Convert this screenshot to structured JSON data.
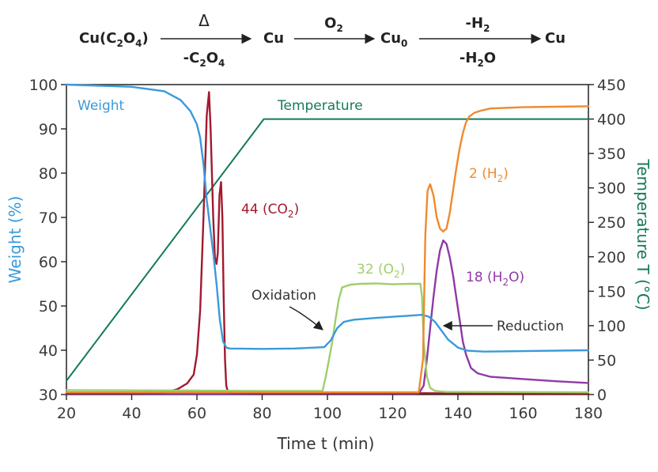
{
  "reaction_scheme": {
    "species": [
      "Cu(C2O4)",
      "Cu",
      "Cu0",
      "Cu"
    ],
    "step1_above": "Δ",
    "step1_below": "-C2O4",
    "step2_above": "O2",
    "step3_above": "-H2",
    "step3_below": "-H2O"
  },
  "chart_data": {
    "type": "line",
    "xlabel": "Time t (min)",
    "ylabel_left": "Weight (%)",
    "ylabel_right": "Temperature T (°C)",
    "xlim": [
      20,
      180
    ],
    "ylim_left": [
      30,
      100
    ],
    "ylim_right": [
      0,
      450
    ],
    "x_ticks": [
      20,
      40,
      60,
      80,
      100,
      120,
      140,
      160,
      180
    ],
    "y_left_ticks": [
      30,
      40,
      50,
      60,
      70,
      80,
      90,
      100
    ],
    "y_right_ticks": [
      0,
      50,
      100,
      150,
      200,
      250,
      300,
      350,
      400,
      450
    ],
    "grid": false,
    "series": [
      {
        "name": "Weight",
        "axis": "left",
        "color": "#3a9ad9",
        "x": [
          20,
          40,
          50,
          55,
          58,
          60,
          61,
          62,
          63,
          64,
          65,
          66,
          67,
          68,
          69,
          70,
          80,
          90,
          99,
          101,
          103,
          105,
          108,
          115,
          125,
          129,
          131,
          133,
          135,
          137,
          140,
          143,
          148,
          160,
          180
        ],
        "y": [
          100,
          99.5,
          98.5,
          96.5,
          94,
          91,
          88,
          82,
          74,
          68,
          62,
          55,
          47,
          42,
          40.6,
          40.4,
          40.3,
          40.4,
          40.7,
          42.2,
          45,
          46.4,
          46.9,
          47.3,
          47.8,
          48,
          47.6,
          46.4,
          44.4,
          42.4,
          40.6,
          39.9,
          39.7,
          39.8,
          40
        ]
      },
      {
        "name": "Temperature",
        "axis": "right",
        "color": "#147a5a",
        "x": [
          20,
          80.5,
          180
        ],
        "y": [
          20,
          400,
          400
        ]
      },
      {
        "name": "44 (CO2)",
        "axis": "left",
        "color": "#a3192e",
        "x": [
          20,
          40,
          50,
          54,
          57,
          59,
          60,
          61,
          62,
          63,
          63.7,
          64.2,
          65,
          65.5,
          66,
          66.4,
          66.9,
          67.4,
          67.8,
          68.2,
          68.6,
          69,
          69.5,
          70,
          80,
          100,
          130,
          150,
          180
        ],
        "y": [
          30.3,
          30.3,
          30.4,
          31.2,
          32.5,
          34.5,
          39,
          49,
          70,
          93,
          98.3,
          90,
          70,
          61,
          59.5,
          62,
          75,
          78,
          70,
          52,
          38,
          32,
          30.6,
          30.4,
          30.3,
          30.3,
          30.3,
          30.2,
          30.2
        ]
      },
      {
        "name": "32 (O2)",
        "axis": "left",
        "color": "#9fce6c",
        "x": [
          20,
          60,
          80,
          98.5,
          99.5,
          100.5,
          101.5,
          102.5,
          103.5,
          104.5,
          107,
          110,
          115,
          120,
          125,
          128.5,
          129,
          129.5,
          130.5,
          131.5,
          133,
          136,
          180
        ],
        "y": [
          31,
          30.9,
          30.8,
          30.8,
          34,
          38,
          42,
          47,
          51.5,
          54.2,
          54.8,
          55,
          55.1,
          54.9,
          55,
          55,
          52,
          42,
          34,
          31.5,
          30.8,
          30.6,
          30.5
        ]
      },
      {
        "name": "18 (H2O)",
        "axis": "left",
        "color": "#8e3aa6",
        "x": [
          20,
          60,
          100,
          128,
          129.5,
          130.5,
          131.5,
          132.5,
          133.5,
          134.5,
          135.5,
          136.5,
          137.5,
          138.5,
          139.5,
          140.5,
          141.5,
          142.5,
          144,
          146,
          150,
          160,
          170,
          180
        ],
        "y": [
          30.2,
          30.2,
          30.2,
          30.2,
          32,
          38,
          45,
          52,
          58,
          62.5,
          64.8,
          64,
          61,
          57,
          52,
          47,
          42,
          39,
          36,
          34.8,
          34,
          33.5,
          33,
          32.6
        ]
      },
      {
        "name": "2 (H2)",
        "axis": "left",
        "color": "#ef8a2f",
        "x": [
          20,
          60,
          100,
          128,
          129.3,
          130,
          130.7,
          131.5,
          132.5,
          133.5,
          134.5,
          135.5,
          136.5,
          137.5,
          138.5,
          139.5,
          140.5,
          141.5,
          142.5,
          143.5,
          145,
          147,
          150,
          160,
          170,
          180
        ],
        "y": [
          30.5,
          30.5,
          30.5,
          30.5,
          38,
          66,
          76,
          77.5,
          75,
          70,
          67.5,
          66.8,
          67.5,
          71,
          76,
          81,
          85.5,
          89,
          91.5,
          92.8,
          93.6,
          94.1,
          94.6,
          94.9,
          95,
          95.1
        ]
      }
    ],
    "annotations": [
      {
        "text": "44 (CO2)",
        "color": "#a3192e"
      },
      {
        "text": "32 (O2)",
        "color": "#9fce6c"
      },
      {
        "text": "18 (H2O)",
        "color": "#8e3aa6"
      },
      {
        "text": "2 (H2)",
        "color": "#ef8a2f"
      },
      {
        "text": "Oxidation",
        "color": "#333333"
      },
      {
        "text": "Reduction",
        "color": "#333333"
      }
    ]
  }
}
